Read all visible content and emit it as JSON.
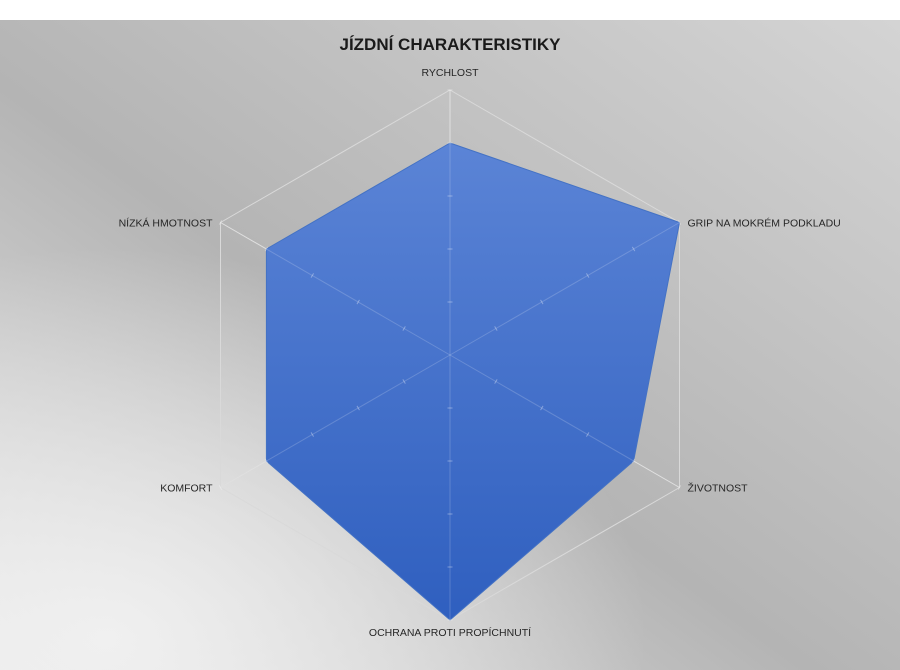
{
  "chart_data": {
    "type": "radar",
    "title": "JÍZDNÍ CHARAKTERISTIKY",
    "axes": [
      "RYCHLOST",
      "GRIP NA MOKRÉM PODKLADU",
      "ŽIVOTNOST",
      "OCHRANA PROTI PROPÍCHNUTÍ",
      "KOMFORT",
      "NÍZKÁ HMOTNOST"
    ],
    "series": [
      {
        "values": [
          4,
          5,
          4,
          5,
          4,
          4
        ],
        "color": "#4472c4"
      }
    ],
    "rlim": [
      0,
      5
    ],
    "ticks": [
      1,
      2,
      3,
      4,
      5
    ],
    "grid": true,
    "legend": "none",
    "colors": {
      "background_light": "#eaeaea",
      "background_dark": "#a6a6a6",
      "gridline": "#d9d9d9",
      "fill_top": "#5b84d6",
      "fill_bottom": "#2f5fbf"
    }
  }
}
